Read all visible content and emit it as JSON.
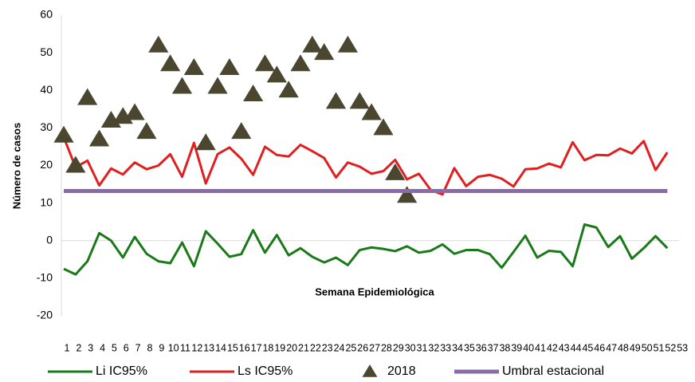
{
  "chart_data": {
    "type": "line",
    "x_label": "Semana Epidemiológica",
    "y_label": "Número de casos",
    "categories": [
      "1",
      "2",
      "3",
      "4",
      "5",
      "6",
      "7",
      "8",
      "9",
      "10",
      "11",
      "12",
      "13",
      "14",
      "15",
      "16",
      "17",
      "18",
      "19",
      "20",
      "21",
      "22",
      "23",
      "24",
      "25",
      "26",
      "27",
      "28",
      "29",
      "30",
      "31",
      "32",
      "33",
      "34",
      "35",
      "36",
      "37",
      "38",
      "39",
      "40",
      "41",
      "42",
      "43",
      "44",
      "45",
      "46",
      "47",
      "48",
      "49",
      "50",
      "51",
      "52",
      "53"
    ],
    "ylim": [
      -20,
      60
    ],
    "yticks": [
      -20,
      -10,
      0,
      10,
      20,
      30,
      40,
      50,
      60
    ],
    "series": [
      {
        "name": "Li IC95%",
        "color": "#1a7a1a",
        "kind": "line",
        "values": [
          -7.5,
          -9,
          -5.5,
          2,
          0,
          -4.5,
          1,
          -3.5,
          -5.5,
          -6,
          -0.5,
          -6.8,
          2.5,
          -0.8,
          -4.3,
          -3.6,
          2.8,
          -3.2,
          1.5,
          -3.9,
          -2,
          -4.3,
          -5.8,
          -4.5,
          -6.5,
          -2.5,
          -1.8,
          -2.2,
          -2.8,
          -1.5,
          -3.2,
          -2.7,
          -1,
          -3.5,
          -2.5,
          -2.5,
          -3.6,
          -7.2,
          -3,
          1.3,
          -4.5,
          -2.7,
          -3,
          -6.8,
          4.3,
          3.5,
          -1.7,
          1.2,
          -4.8,
          -2,
          1.2,
          -2,
          null
        ]
      },
      {
        "name": "Ls IC95%",
        "color": "#e02020",
        "kind": "line",
        "values": [
          27.5,
          19.5,
          21.3,
          14.7,
          19.2,
          17.6,
          20.8,
          19,
          20,
          23,
          17,
          26,
          15.2,
          23,
          24.8,
          21.8,
          17.5,
          25,
          22.8,
          22.4,
          25.5,
          23.8,
          22,
          16.8,
          20.8,
          19.7,
          17.8,
          18.5,
          21.5,
          16.3,
          17.8,
          13.5,
          12.3,
          19.3,
          14.5,
          17,
          17.5,
          16.5,
          14.4,
          19,
          19.2,
          20.5,
          19.5,
          26.2,
          21.4,
          22.8,
          22.7,
          24.5,
          23.2,
          26.5,
          18.8,
          23.5,
          null
        ]
      },
      {
        "name": "2018",
        "color": "#4a4630",
        "kind": "marker",
        "values": [
          28,
          20,
          38,
          27,
          32,
          33,
          34,
          29,
          52,
          47,
          41,
          46,
          26,
          41,
          46,
          29,
          39,
          47,
          44,
          40,
          47,
          52,
          50,
          37,
          52,
          37,
          34,
          30,
          18,
          12,
          null,
          null,
          null,
          null,
          null,
          null,
          null,
          null,
          null,
          null,
          null,
          null,
          null,
          null,
          null,
          null,
          null,
          null,
          null,
          null,
          null,
          null,
          null
        ]
      },
      {
        "name": "Umbral estacional",
        "color": "#8a6aaa",
        "kind": "line",
        "width": 5,
        "values": [
          13.2,
          13.2,
          13.2,
          13.2,
          13.2,
          13.2,
          13.2,
          13.2,
          13.2,
          13.2,
          13.2,
          13.2,
          13.2,
          13.2,
          13.2,
          13.2,
          13.2,
          13.2,
          13.2,
          13.2,
          13.2,
          13.2,
          13.2,
          13.2,
          13.2,
          13.2,
          13.2,
          13.2,
          13.2,
          13.2,
          13.2,
          13.2,
          13.2,
          13.2,
          13.2,
          13.2,
          13.2,
          13.2,
          13.2,
          13.2,
          13.2,
          13.2,
          13.2,
          13.2,
          13.2,
          13.2,
          13.2,
          13.2,
          13.2,
          13.2,
          13.2,
          13.2,
          null
        ]
      }
    ]
  }
}
